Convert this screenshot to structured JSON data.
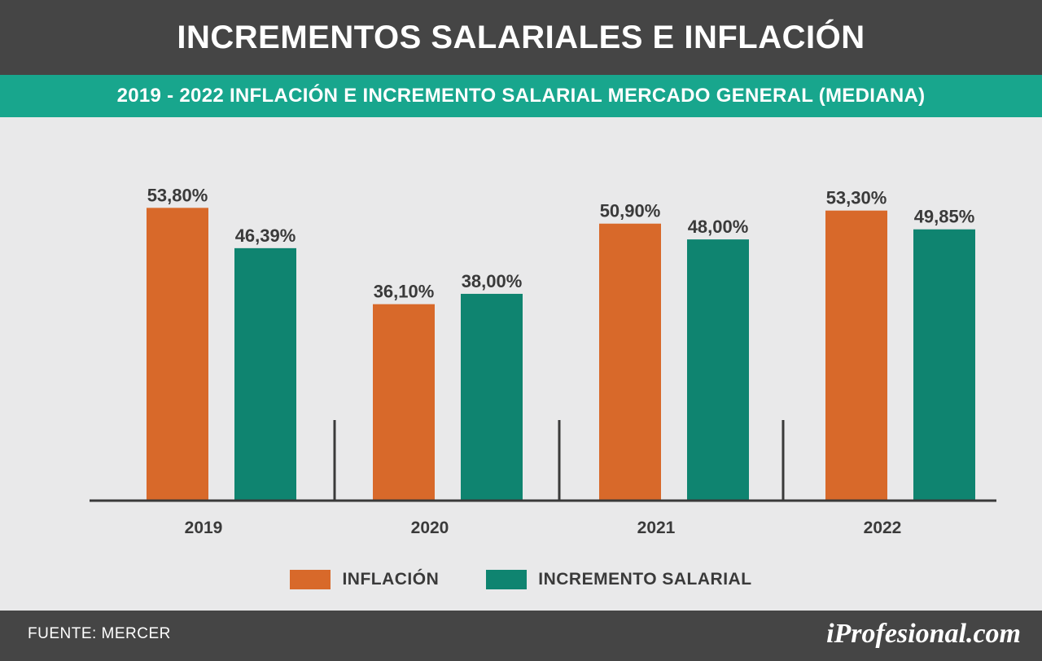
{
  "header": {
    "title": "INCREMENTOS SALARIALES E INFLACIÓN"
  },
  "subheader": {
    "text": "2019 - 2022 INFLACIÓN E INCREMENTO SALARIAL MERCADO GENERAL (MEDIANA)"
  },
  "chart_data": {
    "type": "bar",
    "title": "2019 - 2022 INFLACIÓN E INCREMENTO SALARIAL MERCADO GENERAL (MEDIANA)",
    "categories": [
      "2019",
      "2020",
      "2021",
      "2022"
    ],
    "series": [
      {
        "name": "INFLACIÓN",
        "values": [
          53.8,
          36.1,
          50.9,
          53.3
        ],
        "labels": [
          "53,80%",
          "36,10%",
          "50,90%",
          "53,30%"
        ],
        "color": "#d8692a"
      },
      {
        "name": "INCREMENTO SALARIAL",
        "values": [
          46.39,
          38.0,
          48.0,
          49.85
        ],
        "labels": [
          "46,39%",
          "38,00%",
          "48,00%",
          "49,85%"
        ],
        "color": "#0f8470"
      }
    ],
    "ylim": [
      0,
      60
    ],
    "grid": false,
    "legend_position": "bottom-center",
    "xlabel": "",
    "ylabel": ""
  },
  "footer": {
    "source": "FUENTE: MERCER",
    "brand": "iProfesional.com"
  },
  "colors": {
    "header_bg": "#454545",
    "subheader_bg": "#18a68d",
    "background": "#e9e9ea",
    "axis": "#3a3a3a"
  }
}
